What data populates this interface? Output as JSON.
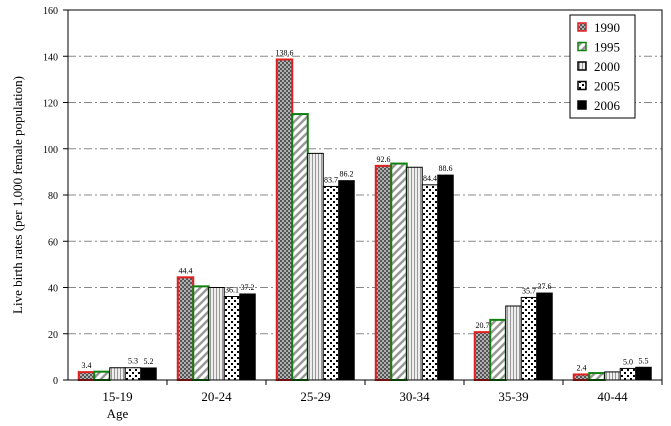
{
  "chart_data": {
    "type": "bar",
    "title": "",
    "xlabel": "Age",
    "ylabel": "Live birth rates (per 1,000 female population)",
    "ylim": [
      0,
      160
    ],
    "yticks": [
      0,
      20,
      40,
      60,
      80,
      100,
      120,
      140,
      160
    ],
    "grid": true,
    "legend_position": "top-right",
    "categories": [
      "15-19",
      "20-24",
      "25-29",
      "30-34",
      "35-39",
      "40-44"
    ],
    "series": [
      {
        "name": "1990",
        "values": [
          3.4,
          44.4,
          138.6,
          92.6,
          20.7,
          2.4
        ],
        "labels": [
          "3.4",
          "44.4",
          "138.6",
          "92.6",
          "20.7",
          "2.4"
        ],
        "border": "#e02020",
        "pattern": "checker"
      },
      {
        "name": "1995",
        "values": [
          3.6,
          40.5,
          115.0,
          93.6,
          26.0,
          3.0
        ],
        "labels": [
          "",
          "",
          "",
          "",
          "",
          ""
        ],
        "border": "#108010",
        "pattern": "diag"
      },
      {
        "name": "2000",
        "values": [
          5.3,
          40.0,
          98.0,
          92.0,
          32.0,
          3.5
        ],
        "labels": [
          "",
          "",
          "",
          "",
          "",
          ""
        ],
        "border": "#000000",
        "pattern": "vlines"
      },
      {
        "name": "2005",
        "values": [
          5.3,
          36.1,
          83.7,
          84.4,
          35.7,
          5.0
        ],
        "labels": [
          "5.3",
          "36.1",
          "83.7",
          "84.4",
          "35.7",
          "5.0"
        ],
        "border": "#000000",
        "pattern": "dots"
      },
      {
        "name": "2006",
        "values": [
          5.2,
          37.2,
          86.2,
          88.6,
          37.6,
          5.5
        ],
        "labels": [
          "5.2",
          "37.2",
          "86.2",
          "88.6",
          "37.6",
          "5.5"
        ],
        "border": "#000000",
        "pattern": "solid"
      }
    ]
  }
}
